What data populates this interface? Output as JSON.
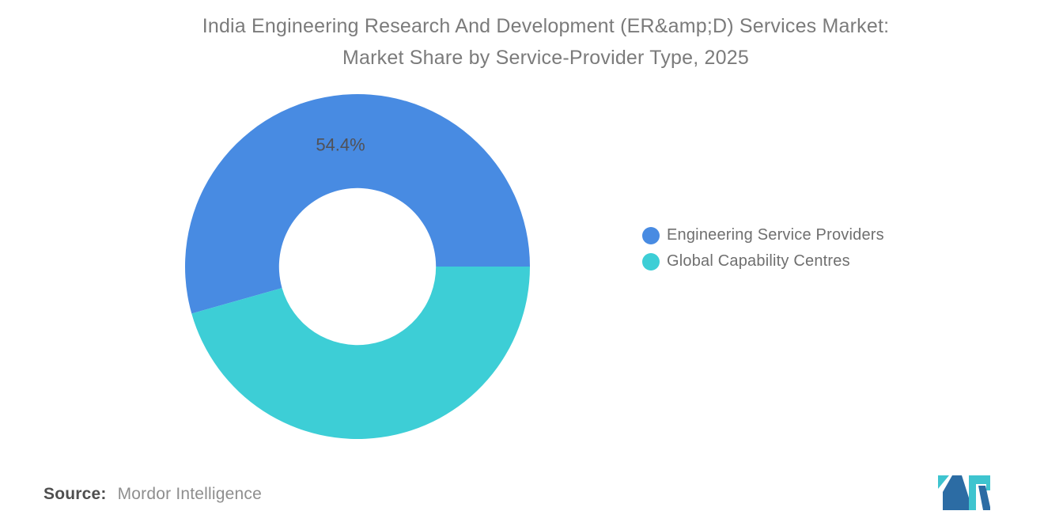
{
  "title": {
    "line1": "India Engineering Research And Development (ER&amp;D) Services Market:",
    "line2": "Market Share by Service-Provider Type, 2025"
  },
  "chart_data": {
    "type": "pie",
    "subtype": "donut",
    "title": "India Engineering Research And Development (ER&amp;D) Services Market: Market Share by Service-Provider Type, 2025",
    "unit": "%",
    "series": [
      {
        "name": "Engineering Service Providers",
        "value": 54.4,
        "label": "54.4%",
        "color": "#488BE2"
      },
      {
        "name": "Global Capability Centres",
        "value": 45.6,
        "label": "",
        "color": "#3DCED6"
      }
    ],
    "start_angle_deg": 0,
    "direction": "counterclockwise",
    "outer_radius": 218,
    "inner_radius_ratio": 0.455,
    "label_radius_ratio": 0.715,
    "label_color": "#515156",
    "legend_position": "right",
    "grid": false
  },
  "source": {
    "label": "Source:",
    "value": "Mordor Intelligence"
  },
  "logo": {
    "alt": "Mordor Intelligence logo mark",
    "teal": "#3EC4CF",
    "blue": "#2C6CA4"
  }
}
